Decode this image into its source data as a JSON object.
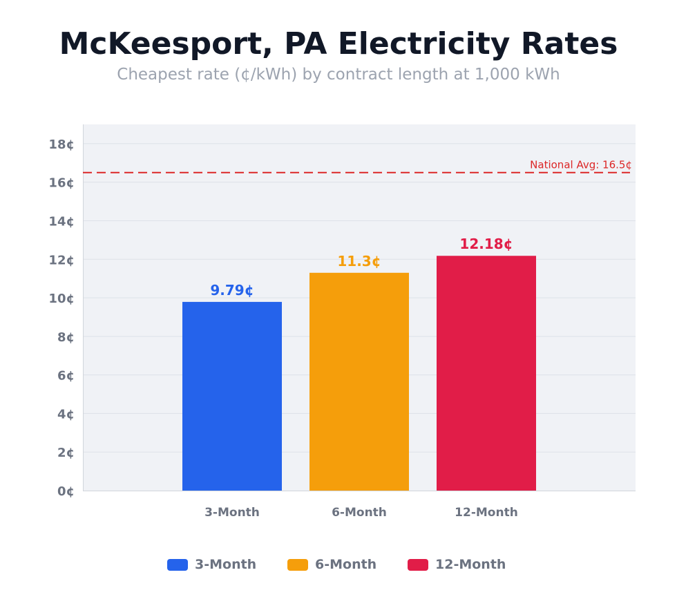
{
  "chart_data": {
    "type": "bar",
    "title": "McKeesport, PA Electricity Rates",
    "subtitle": "Cheapest rate (¢/kWh) by contract length at 1,000 kWh",
    "categories": [
      "3-Month",
      "6-Month",
      "12-Month"
    ],
    "values": [
      9.79,
      11.3,
      12.18
    ],
    "data_labels": [
      "9.79¢",
      "11.3¢",
      "12.18¢"
    ],
    "colors": [
      "#2563eb",
      "#f59e0b",
      "#e11d48"
    ],
    "ylim": [
      0,
      19
    ],
    "yticks": [
      0,
      2,
      4,
      6,
      8,
      10,
      12,
      14,
      16,
      18
    ],
    "ytick_suffix": "¢",
    "grid": true,
    "reference_line": {
      "value": 16.5,
      "label": "National Avg: 16.5¢",
      "color": "#dc2626",
      "style": "dashed"
    },
    "legend": {
      "placement": "bottom",
      "entries": [
        "3-Month",
        "6-Month",
        "12-Month"
      ]
    },
    "xlabel": "",
    "ylabel": ""
  }
}
